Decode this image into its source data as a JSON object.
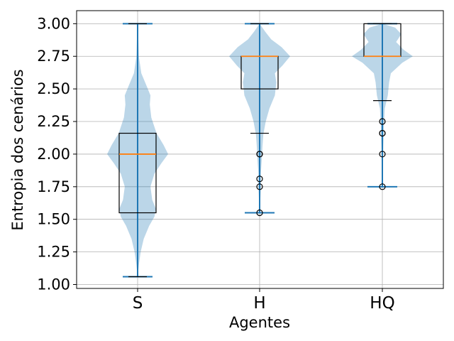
{
  "chart_data": {
    "type": "violin+box",
    "xlabel": "Agentes",
    "ylabel": "Entropia dos cenários",
    "categories": [
      "S",
      "H",
      "HQ"
    ],
    "ylim": [
      0.97,
      3.1
    ],
    "yticks": [
      "1.00",
      "1.25",
      "1.50",
      "1.75",
      "2.00",
      "2.25",
      "2.50",
      "2.75",
      "3.00"
    ],
    "grid": true,
    "colors": {
      "violin": "#1f77b4",
      "median": "#ff7f0e",
      "box": "#000000"
    },
    "series": [
      {
        "category": "S",
        "violin": {
          "min": 1.06,
          "max": 3.0,
          "mean": 1.94
        },
        "box": {
          "q1": 1.55,
          "median": 2.0,
          "q3": 2.16,
          "whisker_low": 1.06,
          "whisker_high": 3.0
        },
        "outliers": []
      },
      {
        "category": "H",
        "violin": {
          "min": 1.55,
          "max": 3.0,
          "mean": 2.55
        },
        "box": {
          "q1": 2.5,
          "median": 2.75,
          "q3": 2.75,
          "whisker_low": 2.16,
          "whisker_high": 3.0
        },
        "outliers": [
          2.0,
          2.0,
          1.81,
          1.75,
          1.55
        ]
      },
      {
        "category": "HQ",
        "violin": {
          "min": 1.75,
          "max": 3.0,
          "mean": 2.75
        },
        "box": {
          "q1": 2.75,
          "median": 2.75,
          "q3": 3.0,
          "whisker_low": 2.41,
          "whisker_high": 3.0
        },
        "outliers": [
          2.25,
          2.16,
          2.16,
          2.0,
          1.75
        ]
      }
    ]
  }
}
